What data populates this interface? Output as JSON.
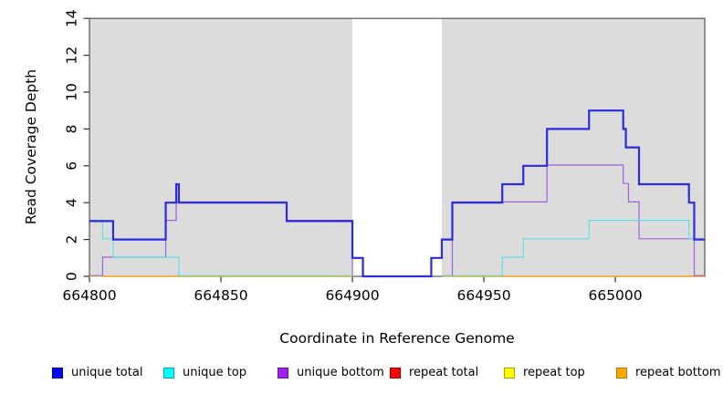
{
  "chart_data": {
    "type": "line",
    "title": "",
    "xlabel": "Coordinate in Reference Genome",
    "ylabel": "Read Coverage Depth",
    "xlim": [
      664800,
      665034
    ],
    "ylim": [
      0,
      14
    ],
    "x_ticks": [
      664800,
      664850,
      664900,
      664950,
      665000
    ],
    "y_ticks": [
      0,
      2,
      4,
      6,
      8,
      10,
      12,
      14
    ],
    "grid": false,
    "plot_background": "#ffffff",
    "shaded_color": "#dcdcdc",
    "shaded_regions": [
      [
        664800,
        664900
      ],
      [
        664934,
        665034
      ]
    ],
    "gap_region": [
      664900,
      664934
    ],
    "legend_position": "bottom",
    "legend": [
      {
        "label": "unique total",
        "fill": "#0000ff",
        "border": "#0000b0"
      },
      {
        "label": "unique top",
        "fill": "#00ffff",
        "border": "#00a6b3"
      },
      {
        "label": "unique bottom",
        "fill": "#a020f0",
        "border": "#6a11a8"
      },
      {
        "label": "repeat total",
        "fill": "#ff0000",
        "border": "#a80000"
      },
      {
        "label": "repeat top",
        "fill": "#ffff00",
        "border": "#a8a800"
      },
      {
        "label": "repeat bottom",
        "fill": "#ffa500",
        "border": "#b87400"
      }
    ],
    "series": [
      {
        "name": "repeat total",
        "color": "#dd2222",
        "width": 1.1,
        "dy": 0,
        "segments": [
          {
            "steps": [
              [
                664800,
                0
              ]
            ],
            "end": 664900
          },
          {
            "steps": [
              [
                664934,
                0
              ]
            ],
            "end": 665034
          }
        ]
      },
      {
        "name": "repeat top",
        "color": "#ffeb3b",
        "width": 1.1,
        "dy": 0,
        "segments": [
          {
            "steps": [
              [
                664800,
                0
              ]
            ],
            "end": 664900
          },
          {
            "steps": [
              [
                664934,
                0
              ]
            ],
            "end": 665034
          }
        ]
      },
      {
        "name": "repeat bottom",
        "color": "#ff9f00",
        "width": 1.3,
        "dy": 0,
        "segments": [
          {
            "steps": [
              [
                664805,
                0
              ]
            ],
            "end": 664900
          },
          {
            "steps": [
              [
                664934,
                0
              ]
            ],
            "end": 665034
          }
        ]
      },
      {
        "name": "unique bottom",
        "color": "#9c63d8",
        "width": 1.2,
        "dy": -0.8,
        "segments": [
          {
            "steps": [
              [
                664800,
                0
              ],
              [
                664805,
                1
              ],
              [
                664829,
                3
              ],
              [
                664833,
                4
              ],
              [
                664875,
                3
              ],
              [
                664900,
                0
              ]
            ],
            "end": 664900
          },
          {
            "steps": [
              [
                664934,
                0
              ],
              [
                664938,
                4
              ],
              [
                664974,
                6
              ],
              [
                665003,
                5
              ],
              [
                665005,
                4
              ],
              [
                665009,
                2
              ],
              [
                665030,
                0
              ]
            ],
            "end": 665034
          }
        ]
      },
      {
        "name": "unique top",
        "color": "#5fe0e8",
        "width": 1.2,
        "dy": -0.8,
        "segments": [
          {
            "steps": [
              [
                664800,
                3
              ],
              [
                664805,
                2
              ],
              [
                664809,
                1
              ],
              [
                664834,
                0
              ]
            ],
            "end": 664900
          },
          {
            "steps": [
              [
                664934,
                0
              ],
              [
                664957,
                1
              ],
              [
                664965,
                2
              ],
              [
                664990,
                3
              ],
              [
                665028,
                2
              ]
            ],
            "end": 665034
          }
        ]
      },
      {
        "name": "unique total",
        "color": "#2b2be0",
        "width": 2.2,
        "dy": 0,
        "segments": [
          {
            "steps": [
              [
                664800,
                3
              ],
              [
                664809,
                2
              ],
              [
                664829,
                4
              ],
              [
                664833,
                5
              ],
              [
                664834,
                4
              ],
              [
                664875,
                3
              ],
              [
                664900,
                1
              ],
              [
                664904,
                0
              ],
              [
                664930,
                1
              ],
              [
                664934,
                2
              ],
              [
                664938,
                4
              ],
              [
                664957,
                5
              ],
              [
                664965,
                6
              ],
              [
                664974,
                8
              ],
              [
                664990,
                9
              ],
              [
                665003,
                8
              ],
              [
                665004,
                7
              ],
              [
                665009,
                5
              ],
              [
                665028,
                4
              ],
              [
                665030,
                2
              ]
            ],
            "end": 665034
          }
        ]
      }
    ]
  }
}
